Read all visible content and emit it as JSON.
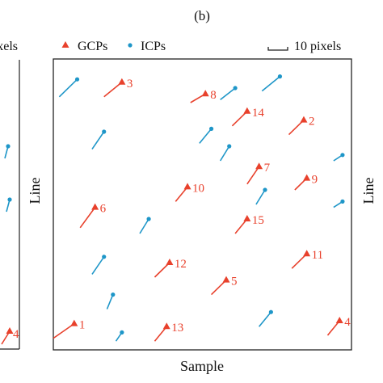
{
  "chart_data": {
    "type": "scatter",
    "panel_label": "(b)",
    "xlabel": "Sample",
    "ylabel": "Line",
    "left_panel_fragments": {
      "legend_text": "xels",
      "point_label": "4"
    },
    "right_panel_fragments": {
      "ylabel": "Line"
    },
    "legend": {
      "gcp_label": "GCPs",
      "icp_label": "ICPs",
      "scale_label": "10 pixels",
      "placement": "top"
    },
    "colors": {
      "gcp": "#e8412c",
      "icp": "#1e96c8",
      "axis": "#222222"
    },
    "grid": false,
    "xlim": [
      0,
      1
    ],
    "ylim": [
      0,
      1
    ],
    "series": [
      {
        "name": "GCPs",
        "marker": "triangle",
        "points": [
          {
            "id": "1",
            "x": 0.07,
            "y": 0.09,
            "dx": -0.07,
            "dy": -0.05
          },
          {
            "id": "2",
            "x": 0.84,
            "y": 0.79,
            "dx": -0.05,
            "dy": -0.05
          },
          {
            "id": "3",
            "x": 0.23,
            "y": 0.92,
            "dx": -0.06,
            "dy": -0.05
          },
          {
            "id": "4",
            "x": 0.96,
            "y": 0.1,
            "dx": -0.04,
            "dy": -0.05
          },
          {
            "id": "5",
            "x": 0.58,
            "y": 0.24,
            "dx": -0.05,
            "dy": -0.05
          },
          {
            "id": "6",
            "x": 0.14,
            "y": 0.49,
            "dx": -0.05,
            "dy": -0.07
          },
          {
            "id": "7",
            "x": 0.69,
            "y": 0.63,
            "dx": -0.04,
            "dy": -0.06
          },
          {
            "id": "8",
            "x": 0.51,
            "y": 0.88,
            "dx": -0.05,
            "dy": -0.03
          },
          {
            "id": "9",
            "x": 0.85,
            "y": 0.59,
            "dx": -0.04,
            "dy": -0.04
          },
          {
            "id": "10",
            "x": 0.45,
            "y": 0.56,
            "dx": -0.04,
            "dy": -0.05
          },
          {
            "id": "11",
            "x": 0.85,
            "y": 0.33,
            "dx": -0.05,
            "dy": -0.05
          },
          {
            "id": "12",
            "x": 0.39,
            "y": 0.3,
            "dx": -0.05,
            "dy": -0.05
          },
          {
            "id": "13",
            "x": 0.38,
            "y": 0.08,
            "dx": -0.04,
            "dy": -0.05
          },
          {
            "id": "14",
            "x": 0.65,
            "y": 0.82,
            "dx": -0.05,
            "dy": -0.05
          },
          {
            "id": "15",
            "x": 0.65,
            "y": 0.45,
            "dx": -0.04,
            "dy": -0.05
          }
        ]
      },
      {
        "name": "ICPs",
        "marker": "circle",
        "points": [
          {
            "x": 0.08,
            "y": 0.93,
            "dx": -0.06,
            "dy": -0.06
          },
          {
            "x": 0.17,
            "y": 0.75,
            "dx": -0.04,
            "dy": -0.06
          },
          {
            "x": 0.61,
            "y": 0.9,
            "dx": -0.05,
            "dy": -0.04
          },
          {
            "x": 0.76,
            "y": 0.94,
            "dx": -0.06,
            "dy": -0.05
          },
          {
            "x": 0.53,
            "y": 0.76,
            "dx": -0.04,
            "dy": -0.05
          },
          {
            "x": 0.59,
            "y": 0.7,
            "dx": -0.03,
            "dy": -0.05
          },
          {
            "x": 0.97,
            "y": 0.67,
            "dx": -0.03,
            "dy": -0.02
          },
          {
            "x": 0.71,
            "y": 0.55,
            "dx": -0.03,
            "dy": -0.05
          },
          {
            "x": 0.97,
            "y": 0.51,
            "dx": -0.03,
            "dy": -0.02
          },
          {
            "x": 0.32,
            "y": 0.45,
            "dx": -0.03,
            "dy": -0.05
          },
          {
            "x": 0.17,
            "y": 0.32,
            "dx": -0.04,
            "dy": -0.06
          },
          {
            "x": 0.2,
            "y": 0.19,
            "dx": -0.02,
            "dy": -0.05
          },
          {
            "x": 0.73,
            "y": 0.13,
            "dx": -0.04,
            "dy": -0.05
          },
          {
            "x": 0.23,
            "y": 0.06,
            "dx": -0.02,
            "dy": -0.03
          }
        ]
      }
    ]
  }
}
